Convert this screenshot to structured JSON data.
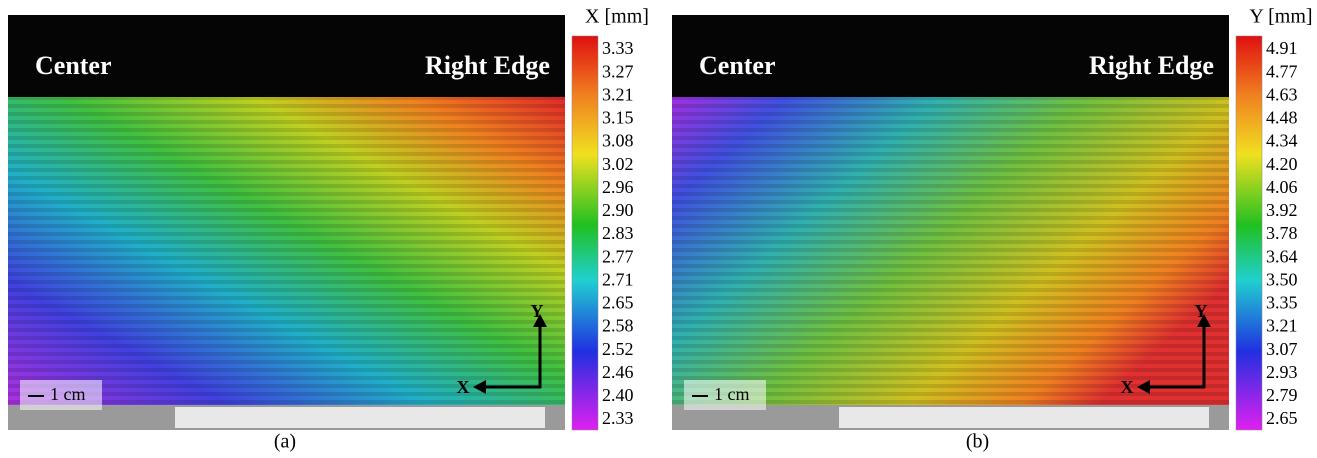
{
  "panels": [
    {
      "caption": "(a)",
      "labels": {
        "center": "Center",
        "right_edge": "Right Edge",
        "scale": "1 cm",
        "axis_x": "X",
        "axis_y": "Y"
      },
      "colorbar": {
        "title": "X [mm]",
        "ticks": [
          "3.33",
          "3.27",
          "3.21",
          "3.15",
          "3.08",
          "3.02",
          "2.96",
          "2.90",
          "2.83",
          "2.77",
          "2.71",
          "2.65",
          "2.58",
          "2.52",
          "2.46",
          "2.40",
          "2.33"
        ]
      }
    },
    {
      "caption": "(b)",
      "labels": {
        "center": "Center",
        "right_edge": "Right Edge",
        "scale": "1 cm",
        "axis_x": "X",
        "axis_y": "Y"
      },
      "colorbar": {
        "title": "Y [mm]",
        "ticks": [
          "4.91",
          "4.77",
          "4.63",
          "4.48",
          "4.34",
          "4.20",
          "4.06",
          "3.92",
          "3.78",
          "3.64",
          "3.50",
          "3.35",
          "3.21",
          "3.07",
          "2.93",
          "2.79",
          "2.65"
        ]
      }
    }
  ]
}
